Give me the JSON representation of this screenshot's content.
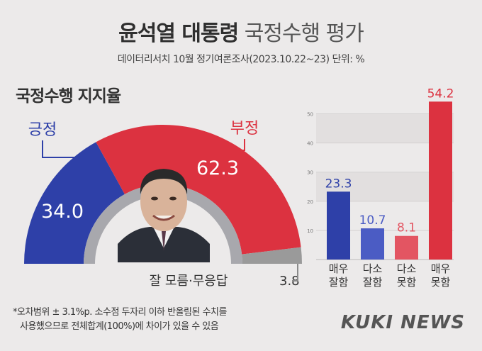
{
  "title_main": "윤석열 대통령",
  "title_sub": "국정수행 평가",
  "subtitle": "데이터리서치 10월 정기여론조사(2023.10.22~23) 단위: %",
  "donut_section_title": "국정수행 지지율",
  "footnote_line1": "*오차범위 ± 3.1%p. 소수점 두자리 이하 반올림된 수치를",
  "footnote_line2": "사용했으므로 전체합계(100%)에 차이가 있을 수 있음",
  "brand": "KUKI NEWS",
  "colors": {
    "positive": "#2e40a8",
    "negative": "#dc3240",
    "neutral": "#9a9a9a"
  },
  "chart_data": [
    {
      "type": "pie",
      "title": "국정수행 지지율",
      "categories": [
        "긍정",
        "부정",
        "잘 모름·무응답"
      ],
      "values": [
        34.0,
        62.3,
        3.8
      ],
      "value_labels": [
        "34.0",
        "62.3",
        "3.8"
      ]
    },
    {
      "type": "bar",
      "categories": [
        "매우\n잘함",
        "다소\n잘함",
        "다소\n못함",
        "매우\n못함"
      ],
      "category_lines": [
        [
          "매우",
          "잘함"
        ],
        [
          "다소",
          "잘함"
        ],
        [
          "다소",
          "못함"
        ],
        [
          "매우",
          "못함"
        ]
      ],
      "values": [
        23.3,
        10.7,
        8.1,
        54.2
      ],
      "value_labels": [
        "23.3",
        "10.7",
        "8.1",
        "54.2"
      ],
      "bar_colors": [
        "#2e40a8",
        "#4b5cc4",
        "#e35562",
        "#dc3240"
      ],
      "ylim": [
        0,
        55
      ],
      "yticks": [
        10,
        20,
        30,
        40,
        50
      ],
      "ytick_labels": [
        "10",
        "20",
        "30",
        "40",
        "50"
      ],
      "grid": true
    }
  ]
}
